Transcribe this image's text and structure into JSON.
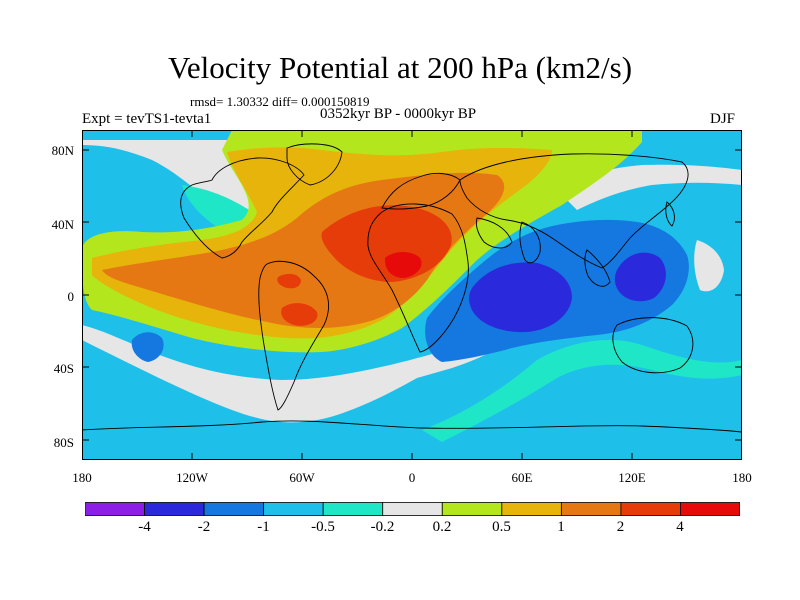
{
  "title": "Velocity Potential at 200 hPa (km2/s)",
  "stats": "rmsd= 1.30332 diff= 0.000150819",
  "period": "0352kyr BP - 0000kyr BP",
  "experiment": "Expt = tevTS1-tevta1",
  "season": "DJF",
  "lat_ticks": [
    "80N",
    "40N",
    "0",
    "40S",
    "80S"
  ],
  "lon_ticks": [
    "180",
    "120W",
    "60W",
    "0",
    "60E",
    "120E",
    "180"
  ],
  "colorbar": {
    "labels": [
      "-4",
      "-2",
      "-1",
      "-0.5",
      "-0.2",
      "0.2",
      "0.5",
      "1",
      "2",
      "4"
    ],
    "colors": [
      "#8c1ee6",
      "#2a2adc",
      "#1478e0",
      "#1ec0ea",
      "#20e6c8",
      "#e6e6e6",
      "#b4e61e",
      "#e6b40a",
      "#e67814",
      "#e63c0a",
      "#e60a0a"
    ]
  },
  "colors": {
    "bg": "#1ec0ea",
    "white": "#e6e6e6",
    "teal": "#20e6c8",
    "mid_blue": "#1478e0",
    "blue": "#2a2adc",
    "lime": "#b4e61e",
    "gold": "#e6b40a",
    "orange": "#e67814",
    "red_orange": "#e63c0a",
    "red": "#e60a0a",
    "coast": "#000000"
  }
}
